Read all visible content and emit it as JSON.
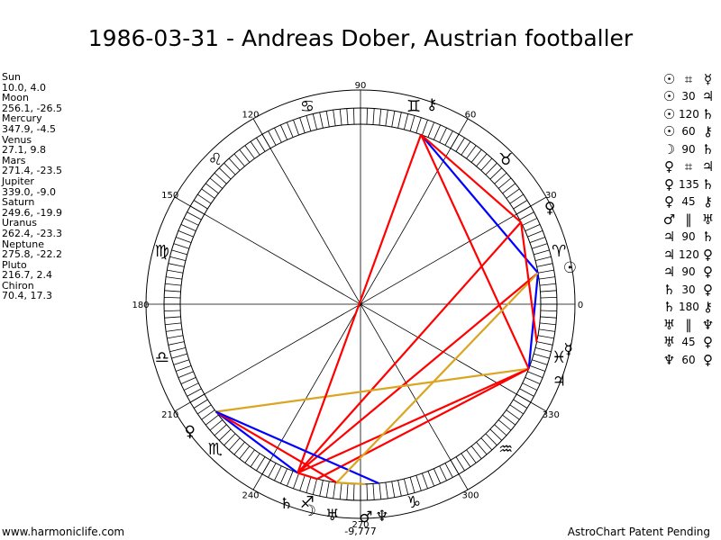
{
  "title": "1986-03-31 - Andreas Dober, Austrian footballer",
  "positions": [
    {
      "name": "Sun",
      "value": "10.0, 4.0"
    },
    {
      "name": "Moon",
      "value": "256.1, -26.5"
    },
    {
      "name": "Mercury",
      "value": "347.9, -4.5"
    },
    {
      "name": "Venus",
      "value": "27.1, 9.8"
    },
    {
      "name": "Mars",
      "value": "271.4, -23.5"
    },
    {
      "name": "Jupiter",
      "value": "339.0, -9.0"
    },
    {
      "name": "Saturn",
      "value": "249.6, -19.9"
    },
    {
      "name": "Uranus",
      "value": "262.4, -23.3"
    },
    {
      "name": "Neptune",
      "value": "275.8, -22.2"
    },
    {
      "name": "Pluto",
      "value": "216.7, 2.4"
    },
    {
      "name": "Chiron",
      "value": "70.4, 17.3"
    }
  ],
  "aspects": [
    {
      "p1": "☉",
      "aspect": "⌗",
      "p2": "☿",
      "symbolic": true
    },
    {
      "p1": "☉",
      "aspect": "30",
      "p2": "♃",
      "symbolic": false
    },
    {
      "p1": "☉",
      "aspect": "120",
      "p2": "♄",
      "symbolic": false
    },
    {
      "p1": "☉",
      "aspect": "60",
      "p2": "⚷",
      "symbolic": false
    },
    {
      "p1": "☽",
      "aspect": "90",
      "p2": "♄",
      "symbolic": false
    },
    {
      "p1": "♀",
      "aspect": "⌗",
      "p2": "♃",
      "symbolic": true
    },
    {
      "p1": "♀",
      "aspect": "135",
      "p2": "♄",
      "symbolic": false
    },
    {
      "p1": "♀",
      "aspect": "45",
      "p2": "⚷",
      "symbolic": false
    },
    {
      "p1": "♂",
      "aspect": "∥",
      "p2": "♅",
      "symbolic": true
    },
    {
      "p1": "♃",
      "aspect": "90",
      "p2": "♄",
      "symbolic": false
    },
    {
      "p1": "♃",
      "aspect": "120",
      "p2": "♀",
      "symbolic": false
    },
    {
      "p1": "♃",
      "aspect": "90",
      "p2": "♀",
      "symbolic": false
    },
    {
      "p1": "♄",
      "aspect": "30",
      "p2": "♀",
      "symbolic": false
    },
    {
      "p1": "♄",
      "aspect": "180",
      "p2": "⚷",
      "symbolic": false
    },
    {
      "p1": "♅",
      "aspect": "∥",
      "p2": "♆",
      "symbolic": true
    },
    {
      "p1": "♅",
      "aspect": "45",
      "p2": "♀",
      "symbolic": false
    },
    {
      "p1": "♆",
      "aspect": "60",
      "p2": "♀",
      "symbolic": false
    }
  ],
  "wheel": {
    "degree_labels": [
      "0",
      "30",
      "60",
      "90",
      "120",
      "150",
      "180",
      "210",
      "240",
      "270",
      "300",
      "330"
    ],
    "degree_values": [
      0,
      30,
      60,
      90,
      120,
      150,
      180,
      210,
      240,
      270,
      300,
      330
    ],
    "sign_glyphs": [
      "♈",
      "♉",
      "♊",
      "♋",
      "♌",
      "♍",
      "♎",
      "♏",
      "♐",
      "♑",
      "♒",
      "♓"
    ],
    "planets": [
      {
        "id": "sun",
        "glyph": "☉",
        "lon": 10.0,
        "lat": 4.0
      },
      {
        "id": "moon",
        "glyph": "☽",
        "lon": 256.1,
        "lat": -26.5
      },
      {
        "id": "mercury",
        "glyph": "☿",
        "lon": 347.9,
        "lat": -4.5
      },
      {
        "id": "venus",
        "glyph": "♀",
        "lon": 27.1,
        "lat": 9.8
      },
      {
        "id": "mars",
        "glyph": "♂",
        "lon": 271.4,
        "lat": -23.5
      },
      {
        "id": "jupiter",
        "glyph": "♃",
        "lon": 339.0,
        "lat": -9.0
      },
      {
        "id": "saturn",
        "glyph": "♄",
        "lon": 249.6,
        "lat": -19.9
      },
      {
        "id": "uranus",
        "glyph": "♅",
        "lon": 262.4,
        "lat": -23.3
      },
      {
        "id": "neptune",
        "glyph": "♆",
        "lon": 275.8,
        "lat": -22.2
      },
      {
        "id": "pluto",
        "glyph": "♀",
        "lon": 216.7,
        "lat": 2.4
      },
      {
        "id": "chiron",
        "glyph": "⚷",
        "lon": 70.4,
        "lat": 17.3
      }
    ],
    "aspect_lines": [
      {
        "from": "sun",
        "to": "jupiter",
        "color": "#0000ff"
      },
      {
        "from": "sun",
        "to": "saturn",
        "color": "#ff0000"
      },
      {
        "from": "sun",
        "to": "chiron",
        "color": "#0000ff"
      },
      {
        "from": "moon",
        "to": "saturn",
        "color": "#ff0000"
      },
      {
        "from": "venus",
        "to": "saturn",
        "color": "#ff0000"
      },
      {
        "from": "venus",
        "to": "chiron",
        "color": "#ff0000"
      },
      {
        "from": "jupiter",
        "to": "saturn",
        "color": "#ff0000"
      },
      {
        "from": "jupiter",
        "to": "pluto",
        "color": "#daa520"
      },
      {
        "from": "jupiter",
        "to": "chiron",
        "color": "#ff0000"
      },
      {
        "from": "jupiter",
        "to": "moon",
        "color": "#ff0000"
      },
      {
        "from": "saturn",
        "to": "pluto",
        "color": "#0000ff"
      },
      {
        "from": "saturn",
        "to": "chiron",
        "color": "#ff0000"
      },
      {
        "from": "uranus",
        "to": "pluto",
        "color": "#ff0000"
      },
      {
        "from": "neptune",
        "to": "pluto",
        "color": "#0000ff"
      },
      {
        "from": "sun",
        "to": "uranus",
        "color": "#daa520"
      },
      {
        "from": "venus",
        "to": "mercury",
        "color": "#ff0000"
      },
      {
        "from": "mars",
        "to": "uranus",
        "color": "#daa520"
      }
    ],
    "overlap_label": "-9,777"
  },
  "footer": {
    "left": "www.harmoniclife.com",
    "right": "AstroChart Patent Pending"
  },
  "colors": {
    "square": "#ff0000",
    "sextile": "#0000ff",
    "minor": "#daa520",
    "lines": "#000000"
  }
}
